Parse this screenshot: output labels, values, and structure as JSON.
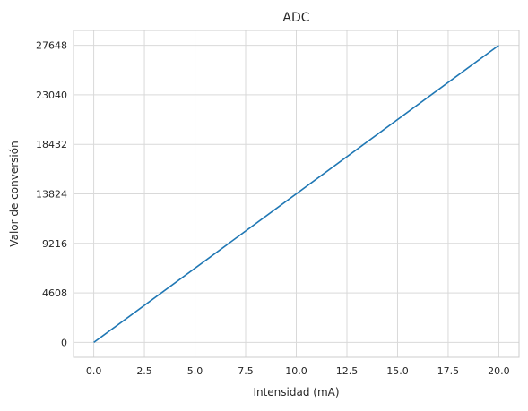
{
  "chart_data": {
    "type": "line",
    "title": "ADC",
    "xlabel": "Intensidad (mA)",
    "ylabel": "Valor de conversión",
    "xlim": [
      -1.0,
      21.0
    ],
    "ylim": [
      -1382.4,
      29030.4
    ],
    "x_ticks": [
      0.0,
      2.5,
      5.0,
      7.5,
      10.0,
      12.5,
      15.0,
      17.5,
      20.0
    ],
    "x_tick_labels": [
      "0.0",
      "2.5",
      "5.0",
      "7.5",
      "10.0",
      "12.5",
      "15.0",
      "17.5",
      "20.0"
    ],
    "y_ticks": [
      0,
      4608,
      9216,
      13824,
      18432,
      23040,
      27648
    ],
    "y_tick_labels": [
      "0",
      "4608",
      "9216",
      "13824",
      "18432",
      "23040",
      "27648"
    ],
    "grid": true,
    "series": [
      {
        "color": "#1f77b4",
        "x": [
          0.0,
          20.0
        ],
        "y": [
          0,
          27648
        ]
      }
    ]
  }
}
